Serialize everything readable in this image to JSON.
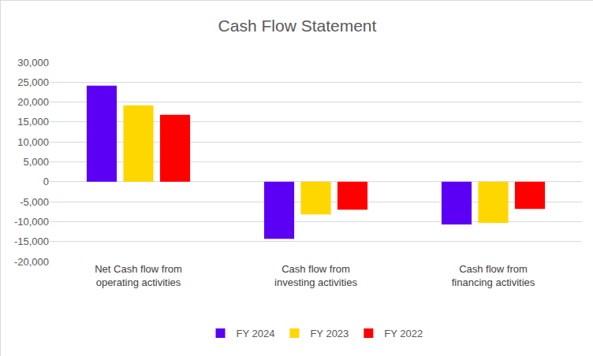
{
  "chart_data": {
    "type": "bar",
    "title": "Cash Flow Statement",
    "categories": [
      "Net Cash flow from operating activities",
      "Cash flow from investing activities",
      "Cash flow from financing activities"
    ],
    "series": [
      {
        "name": "FY 2024",
        "color": "#5B00F5",
        "values": [
          24100,
          -14300,
          -10700
        ]
      },
      {
        "name": "FY 2023",
        "color": "#FFD700",
        "values": [
          19200,
          -8200,
          -10300
        ]
      },
      {
        "name": "FY 2022",
        "color": "#FF0000",
        "values": [
          16800,
          -7000,
          -6800
        ]
      }
    ],
    "ylim": [
      -20000,
      30000
    ],
    "yticks": [
      {
        "value": -20000,
        "label": "-20,000"
      },
      {
        "value": -15000,
        "label": "-15,000"
      },
      {
        "value": -10000,
        "label": "-10,000"
      },
      {
        "value": -5000,
        "label": "-5,000"
      },
      0,
      {
        "value": 5000,
        "label": "5,000"
      },
      {
        "value": 10000,
        "label": "10,000"
      },
      {
        "value": 15000,
        "label": "15,000"
      },
      {
        "value": 20000,
        "label": "20,000"
      },
      {
        "value": 25000,
        "label": "25,000"
      },
      {
        "value": 30000,
        "label": "30,000"
      }
    ],
    "grid": true,
    "legend": "bottom"
  }
}
